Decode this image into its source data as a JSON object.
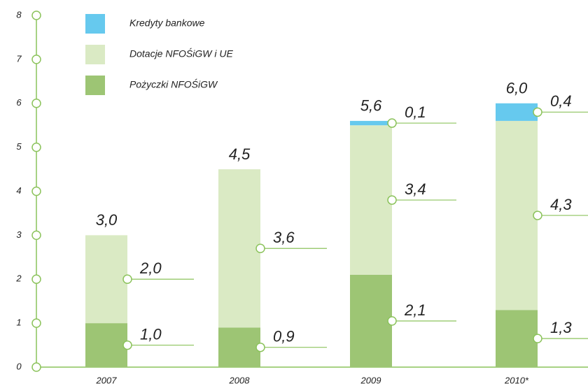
{
  "chart_data": {
    "type": "stacked_bar",
    "categories": [
      "2007",
      "2008",
      "2009",
      "2010*"
    ],
    "series": [
      {
        "name": "Pożyczki NFOŚiGW",
        "color": "#9dc574",
        "values": [
          1.0,
          0.9,
          2.1,
          1.3
        ],
        "value_labels": [
          "1,0",
          "0,9",
          "2,1",
          "1,3"
        ]
      },
      {
        "name": "Dotacje NFOŚiGW i UE",
        "color": "#daeac4",
        "values": [
          2.0,
          3.6,
          3.4,
          4.3
        ],
        "value_labels": [
          "2,0",
          "3,6",
          "3,4",
          "4,3"
        ]
      },
      {
        "name": "Kredyty bankowe",
        "color": "#66c9ee",
        "values": [
          null,
          null,
          0.1,
          0.4
        ],
        "value_labels": [
          null,
          null,
          "0,1",
          "0,4"
        ]
      }
    ],
    "totals": [
      3.0,
      4.5,
      5.6,
      6.0
    ],
    "total_labels": [
      "3,0",
      "4,5",
      "5,6",
      "6,0"
    ],
    "ylim": [
      0,
      8
    ],
    "yticks": [
      0,
      1,
      2,
      3,
      4,
      5,
      6,
      7,
      8
    ],
    "axis_color": "#8cc35c"
  }
}
